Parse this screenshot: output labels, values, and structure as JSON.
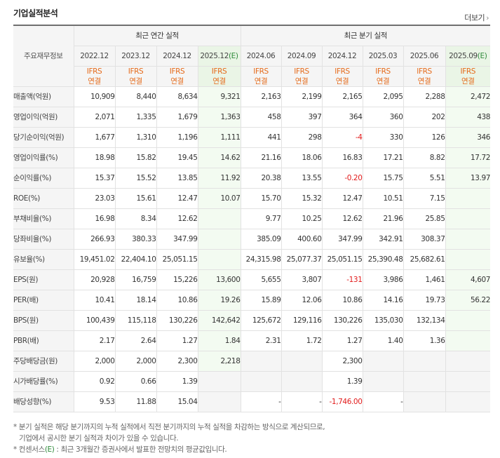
{
  "header": {
    "title": "기업실적분석",
    "more_label": "더보기",
    "more_icon": "chevron-right"
  },
  "table": {
    "row_header": "주요재무정보",
    "group_annual": "최근 연간 실적",
    "group_quarter": "최근 분기 실적",
    "annual_periods": [
      "2022.12",
      "2023.12",
      "2024.12",
      "2025.12"
    ],
    "quarter_periods": [
      "2024.06",
      "2024.09",
      "2024.12",
      "2025.03",
      "2025.06",
      "2025.09"
    ],
    "estimate_marker": "(E)",
    "standard": [
      "IFRS",
      "연결"
    ],
    "rows": [
      {
        "label": "매출액(억원)",
        "annual": [
          "10,909",
          "8,440",
          "8,634",
          "9,321"
        ],
        "quarter": [
          "2,163",
          "2,199",
          "2,165",
          "2,095",
          "2,288",
          "2,472"
        ]
      },
      {
        "label": "영업이익(억원)",
        "annual": [
          "2,071",
          "1,335",
          "1,679",
          "1,363"
        ],
        "quarter": [
          "458",
          "397",
          "364",
          "360",
          "202",
          "438"
        ]
      },
      {
        "label": "당기순이익(억원)",
        "annual": [
          "1,677",
          "1,310",
          "1,196",
          "1,111"
        ],
        "quarter": [
          "441",
          "298",
          "-4",
          "330",
          "126",
          "346"
        ]
      },
      {
        "label": "영업이익률(%)",
        "annual": [
          "18.98",
          "15.82",
          "19.45",
          "14.62"
        ],
        "quarter": [
          "21.16",
          "18.06",
          "16.83",
          "17.21",
          "8.82",
          "17.72"
        ]
      },
      {
        "label": "순이익률(%)",
        "annual": [
          "15.37",
          "15.52",
          "13.85",
          "11.92"
        ],
        "quarter": [
          "20.38",
          "13.55",
          "-0.20",
          "15.75",
          "5.51",
          "13.97"
        ]
      },
      {
        "label": "ROE(%)",
        "annual": [
          "23.03",
          "15.61",
          "12.47",
          "10.07"
        ],
        "quarter": [
          "15.70",
          "15.32",
          "12.47",
          "10.51",
          "7.15",
          ""
        ]
      },
      {
        "label": "부채비율(%)",
        "annual": [
          "16.98",
          "8.34",
          "12.62",
          ""
        ],
        "quarter": [
          "9.77",
          "10.25",
          "12.62",
          "21.96",
          "25.85",
          ""
        ]
      },
      {
        "label": "당좌비율(%)",
        "annual": [
          "266.93",
          "380.33",
          "347.99",
          ""
        ],
        "quarter": [
          "385.09",
          "400.60",
          "347.99",
          "342.91",
          "308.37",
          ""
        ]
      },
      {
        "label": "유보율(%)",
        "annual": [
          "19,451.02",
          "22,404.10",
          "25,051.15",
          ""
        ],
        "quarter": [
          "24,315.98",
          "25,077.37",
          "25,051.15",
          "25,390.48",
          "25,682.61",
          ""
        ]
      },
      {
        "label": "EPS(원)",
        "annual": [
          "20,928",
          "16,759",
          "15,226",
          "13,600"
        ],
        "quarter": [
          "5,655",
          "3,807",
          "-131",
          "3,986",
          "1,461",
          "4,607"
        ]
      },
      {
        "label": "PER(배)",
        "annual": [
          "10.41",
          "18.14",
          "10.86",
          "19.26"
        ],
        "quarter": [
          "15.89",
          "12.06",
          "10.86",
          "14.16",
          "19.73",
          "56.22"
        ]
      },
      {
        "label": "BPS(원)",
        "annual": [
          "100,439",
          "115,118",
          "130,226",
          "142,642"
        ],
        "quarter": [
          "125,672",
          "129,116",
          "130,226",
          "135,030",
          "132,134",
          ""
        ]
      },
      {
        "label": "PBR(배)",
        "annual": [
          "2.17",
          "2.64",
          "1.27",
          "1.84"
        ],
        "quarter": [
          "2.31",
          "1.72",
          "1.27",
          "1.40",
          "1.36",
          ""
        ]
      },
      {
        "label": "주당배당금(원)",
        "annual": [
          "2,000",
          "2,000",
          "2,300",
          "2,218"
        ],
        "quarter": [
          "",
          "",
          "2,300",
          "",
          "",
          ""
        ]
      },
      {
        "label": "시가배당률(%)",
        "annual": [
          "0.92",
          "0.66",
          "1.39",
          ""
        ],
        "quarter": [
          "",
          "",
          "1.39",
          "",
          "",
          ""
        ]
      },
      {
        "label": "배당성향(%)",
        "annual": [
          "9.53",
          "11.88",
          "15.04",
          ""
        ],
        "quarter": [
          "-",
          "-",
          "-1,746.00",
          "-",
          "",
          ""
        ]
      }
    ]
  },
  "notes": {
    "line1": "* 분기 실적은 해당 분기까지의 누적 실적에서 직전 분기까지의 누적 실적을 차감하는 방식으로 계산되므로,",
    "line2": "기업에서 공시한 분기 실적과 차이가 있을 수 있습니다.",
    "line3_prefix": "* 컨센서스",
    "line3_marker": "(E)",
    "line3_suffix": " : 최근 3개월간 증권사에서 발표한 전망치의 평균값입니다."
  },
  "colors": {
    "negative": "#e21b1b",
    "ifrs": "#e56a1a",
    "estimate_bg": "#f3fbf1",
    "estimate_marker": "#2e8b3a"
  }
}
